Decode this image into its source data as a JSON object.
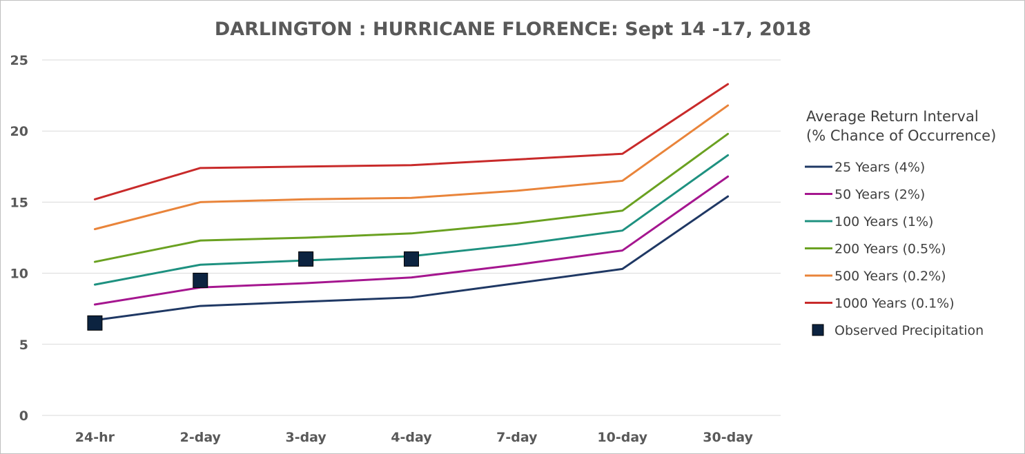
{
  "chart_data": {
    "type": "line",
    "title": "DARLINGTON : HURRICANE FLORENCE: Sept 14 -17, 2018",
    "xlabel": "",
    "ylabel": "",
    "categories": [
      "24-hr",
      "2-day",
      "3-day",
      "4-day",
      "7-day",
      "10-day",
      "30-day"
    ],
    "ylim": [
      0,
      25
    ],
    "yticks": [
      0,
      5,
      10,
      15,
      20,
      25
    ],
    "grid": true,
    "legend": {
      "placement": "right",
      "title_lines": [
        "Average Return Interval",
        "(% Chance of Occurrence)"
      ]
    },
    "series": [
      {
        "name": "25 Years (4%)",
        "color": "#1f3864",
        "values": [
          6.7,
          7.7,
          8.0,
          8.3,
          9.3,
          10.3,
          15.4
        ]
      },
      {
        "name": "50 Years (2%)",
        "color": "#a5168f",
        "values": [
          7.8,
          9.0,
          9.3,
          9.7,
          10.6,
          11.6,
          16.8
        ]
      },
      {
        "name": "100 Years (1%)",
        "color": "#1e9180",
        "values": [
          9.2,
          10.6,
          10.9,
          11.2,
          12.0,
          13.0,
          18.3
        ]
      },
      {
        "name": "200 Years (0.5%)",
        "color": "#6aa121",
        "values": [
          10.8,
          12.3,
          12.5,
          12.8,
          13.5,
          14.4,
          19.8
        ]
      },
      {
        "name": "500 Years (0.2%)",
        "color": "#e9843a",
        "values": [
          13.1,
          15.0,
          15.2,
          15.3,
          15.8,
          16.5,
          21.8
        ]
      },
      {
        "name": "1000 Years (0.1%)",
        "color": "#c82a2a",
        "values": [
          15.2,
          17.4,
          17.5,
          17.6,
          18.0,
          18.4,
          23.3
        ]
      }
    ],
    "observed": {
      "name": "Observed Precipitation",
      "color": "#0c2340",
      "points": [
        {
          "category": "24-hr",
          "value": 6.5
        },
        {
          "category": "2-day",
          "value": 9.5
        },
        {
          "category": "3-day",
          "value": 11.0
        },
        {
          "category": "4-day",
          "value": 11.0
        }
      ]
    }
  }
}
